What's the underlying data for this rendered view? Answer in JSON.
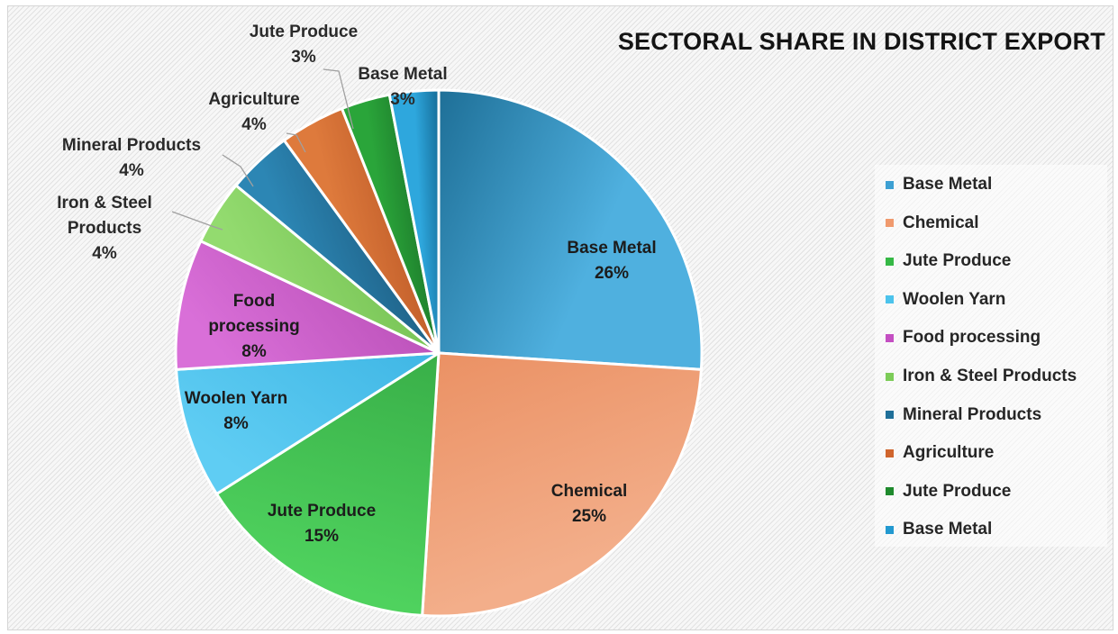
{
  "chart_data": {
    "type": "pie",
    "title": "SECTORAL SHARE IN DISTRICT EXPORT",
    "slices": [
      {
        "label": "Base Metal",
        "value": 26,
        "percent_label": "26%",
        "color_light": "#4fb0df",
        "color_dark": "#1e6f97"
      },
      {
        "label": "Chemical",
        "value": 25,
        "percent_label": "25%",
        "color_light": "#f3ae8a",
        "color_dark": "#e2743e"
      },
      {
        "label": "Jute Produce",
        "value": 15,
        "percent_label": "15%",
        "color_light": "#4fd25e",
        "color_dark": "#228c32"
      },
      {
        "label": "Woolen Yarn",
        "value": 8,
        "percent_label": "8%",
        "color_light": "#5fcdf3",
        "color_dark": "#1f9fd6"
      },
      {
        "label": "Food processing",
        "value": 8,
        "percent_label": "8%",
        "color_light": "#d96fd8",
        "color_dark": "#a2389f"
      },
      {
        "label": "Iron & Steel Products",
        "value": 4,
        "percent_label": "4%",
        "color_light": "#93db6f",
        "color_dark": "#5fae3e"
      },
      {
        "label": "Mineral Products",
        "value": 4,
        "percent_label": "4%",
        "color_light": "#2c86b4",
        "color_dark": "#123e5c"
      },
      {
        "label": "Agriculture",
        "value": 4,
        "percent_label": "4%",
        "color_light": "#de7a3c",
        "color_dark": "#a8461b"
      },
      {
        "label": "Jute Produce",
        "value": 3,
        "percent_label": "3%",
        "color_light": "#2aa53a",
        "color_dark": "#145c20"
      },
      {
        "label": "Base Metal",
        "value": 3,
        "percent_label": "3%",
        "color_light": "#2ea7dd",
        "color_dark": "#156c98"
      }
    ],
    "data_label_lines": [
      [
        "Base Metal",
        "26%"
      ],
      [
        "Chemical",
        "25%"
      ],
      [
        "Jute Produce",
        "15%"
      ],
      [
        "Woolen Yarn",
        "8%"
      ],
      [
        "Food",
        "processing",
        "8%"
      ],
      [
        "Iron & Steel",
        "Products",
        "4%"
      ],
      [
        "Mineral Products",
        "4%"
      ],
      [
        "Agriculture",
        "4%"
      ],
      [
        "Jute Produce",
        "3%"
      ],
      [
        "Base Metal",
        "3%"
      ]
    ],
    "legend": {
      "position": "right",
      "entries": [
        "Base Metal",
        "Chemical",
        "Jute Produce",
        "Woolen Yarn",
        "Food processing",
        "Iron & Steel Products",
        "Mineral Products",
        "Agriculture",
        "Jute Produce",
        "Base Metal"
      ],
      "colors": [
        "#3da0d3",
        "#f09a6e",
        "#35b845",
        "#4cc3ec",
        "#c44fc2",
        "#7ccc58",
        "#1f6f99",
        "#d0652d",
        "#1f8a2d",
        "#2299d0"
      ]
    }
  }
}
